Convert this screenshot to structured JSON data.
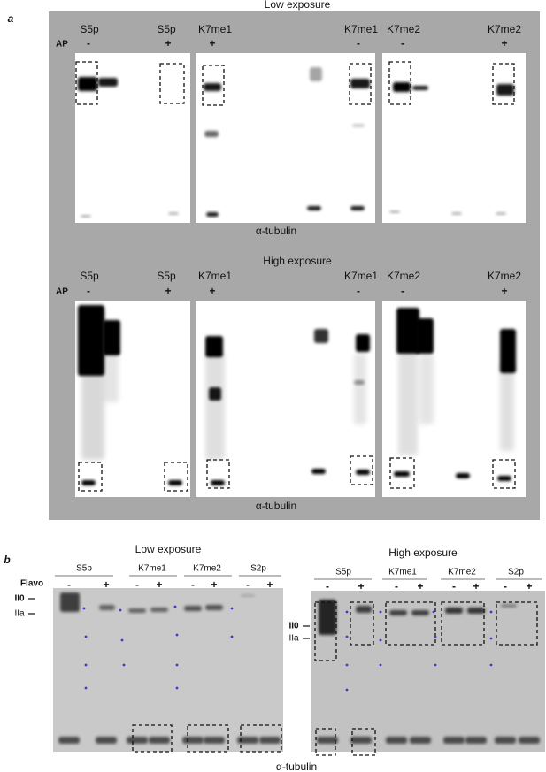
{
  "panel_a": {
    "letter": "a",
    "treatment": "AP",
    "blots": [
      {
        "title": "Low exposure",
        "loading_control": "α-tubulin",
        "lanes": [
          {
            "label": "S5p",
            "sign": "-"
          },
          {
            "label": "S5p",
            "sign": "+"
          },
          {
            "label": "K7me1",
            "sign": "+"
          },
          {
            "label": "K7me1",
            "sign": "-"
          },
          {
            "label": "K7me2",
            "sign": "-"
          },
          {
            "label": "K7me2",
            "sign": "+"
          }
        ]
      },
      {
        "title": "High exposure",
        "loading_control": "α-tubulin",
        "lanes": [
          {
            "label": "S5p",
            "sign": "-"
          },
          {
            "label": "S5p",
            "sign": "+"
          },
          {
            "label": "K7me1",
            "sign": "+"
          },
          {
            "label": "K7me1",
            "sign": "-"
          },
          {
            "label": "K7me2",
            "sign": "-"
          },
          {
            "label": "K7me2",
            "sign": "+"
          }
        ]
      }
    ]
  },
  "panel_b": {
    "letter": "b",
    "treatment": "Flavo",
    "loading_control": "α-tubulin",
    "blots": [
      {
        "title": "Low exposure",
        "band_labels": [
          "II0",
          "IIa"
        ],
        "groups": [
          {
            "label": "S5p",
            "signs": [
              "-",
              "+"
            ]
          },
          {
            "label": "K7me1",
            "signs": [
              "-",
              "+"
            ]
          },
          {
            "label": "K7me2",
            "signs": [
              "-",
              "+"
            ]
          },
          {
            "label": "S2p",
            "signs": [
              "-",
              "+"
            ]
          }
        ]
      },
      {
        "title": "High exposure",
        "band_labels": [
          "II0",
          "IIa"
        ],
        "groups": [
          {
            "label": "S5p",
            "signs": [
              "-",
              "+"
            ]
          },
          {
            "label": "K7me1",
            "signs": [
              "-",
              "+"
            ]
          },
          {
            "label": "K7me2",
            "signs": [
              "-",
              "+"
            ]
          },
          {
            "label": "S2p",
            "signs": [
              "-",
              "+"
            ]
          }
        ]
      }
    ]
  }
}
